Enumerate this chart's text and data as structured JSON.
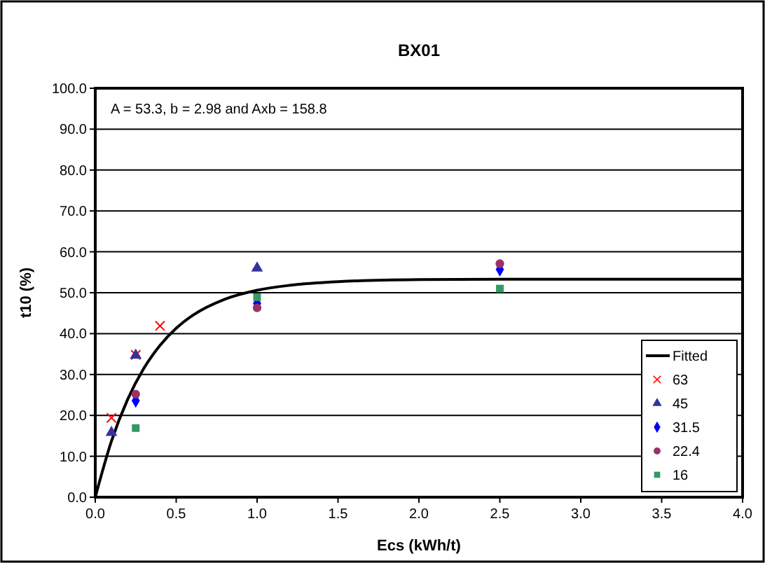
{
  "chart_data": {
    "type": "scatter",
    "title": "BX01",
    "xlabel": "Ecs  (kWh/t)",
    "ylabel": "t10 (%)",
    "annotations": [
      "A = 53.3, b = 2.98 and Axb = 158.8"
    ],
    "xlim": [
      0,
      4
    ],
    "xticks": [
      {
        "value": 0,
        "label": "0.0"
      },
      {
        "value": 0.5,
        "label": "0.5"
      },
      {
        "value": 1,
        "label": "1.0"
      },
      {
        "value": 1.5,
        "label": "1.5"
      },
      {
        "value": 2,
        "label": "2.0"
      },
      {
        "value": 2.5,
        "label": "2.5"
      },
      {
        "value": 3,
        "label": "3.0"
      },
      {
        "value": 3.5,
        "label": "3.5"
      },
      {
        "value": 4,
        "label": "4.0"
      }
    ],
    "ylim": [
      0,
      100
    ],
    "yticks": [
      {
        "value": 0,
        "label": "0.0"
      },
      {
        "value": 10,
        "label": "10.0"
      },
      {
        "value": 20,
        "label": "20.0"
      },
      {
        "value": 30,
        "label": "30.0"
      },
      {
        "value": 40,
        "label": "40.0"
      },
      {
        "value": 50,
        "label": "50.0"
      },
      {
        "value": 60,
        "label": "60.0"
      },
      {
        "value": 70,
        "label": "70.0"
      },
      {
        "value": 80,
        "label": "80.0"
      },
      {
        "value": 90,
        "label": "90.0"
      },
      {
        "value": 100,
        "label": "100.0"
      }
    ],
    "grid": "y",
    "legend": "bottom right",
    "series": [
      {
        "name": "Fitted",
        "type": "line",
        "color": "#000000",
        "marker": "none",
        "x": [
          0,
          0.1,
          0.2,
          0.3,
          0.4,
          0.5,
          0.6,
          0.8,
          1.0,
          1.2,
          1.5,
          2.0,
          2.5,
          3.0,
          4.0
        ],
        "values": [
          0,
          13.7,
          23.9,
          31.5,
          37.1,
          41.3,
          44.4,
          48.4,
          50.6,
          51.8,
          52.7,
          53.2,
          53.3,
          53.3,
          53.3
        ]
      },
      {
        "name": "63",
        "color": "#ff0000",
        "marker": "cross",
        "x": [
          0.1,
          0.25,
          0.4
        ],
        "values": [
          19.4,
          34.8,
          41.9
        ]
      },
      {
        "name": "45",
        "color": "#333399",
        "marker": "triangle",
        "x": [
          0.1,
          0.25,
          1.0
        ],
        "values": [
          15.8,
          34.7,
          56.0
        ]
      },
      {
        "name": "31.5",
        "color": "#0000ff",
        "marker": "diamond",
        "x": [
          0.25,
          1.0,
          2.5
        ],
        "values": [
          23.6,
          47.4,
          55.7
        ]
      },
      {
        "name": "22.4",
        "color": "#993366",
        "marker": "circle",
        "x": [
          0.25,
          1.0,
          2.5
        ],
        "values": [
          25.2,
          46.3,
          57.1
        ]
      },
      {
        "name": "16",
        "color": "#339966",
        "marker": "square",
        "x": [
          0.25,
          1.0,
          2.5
        ],
        "values": [
          16.9,
          48.9,
          51.0
        ]
      }
    ]
  }
}
